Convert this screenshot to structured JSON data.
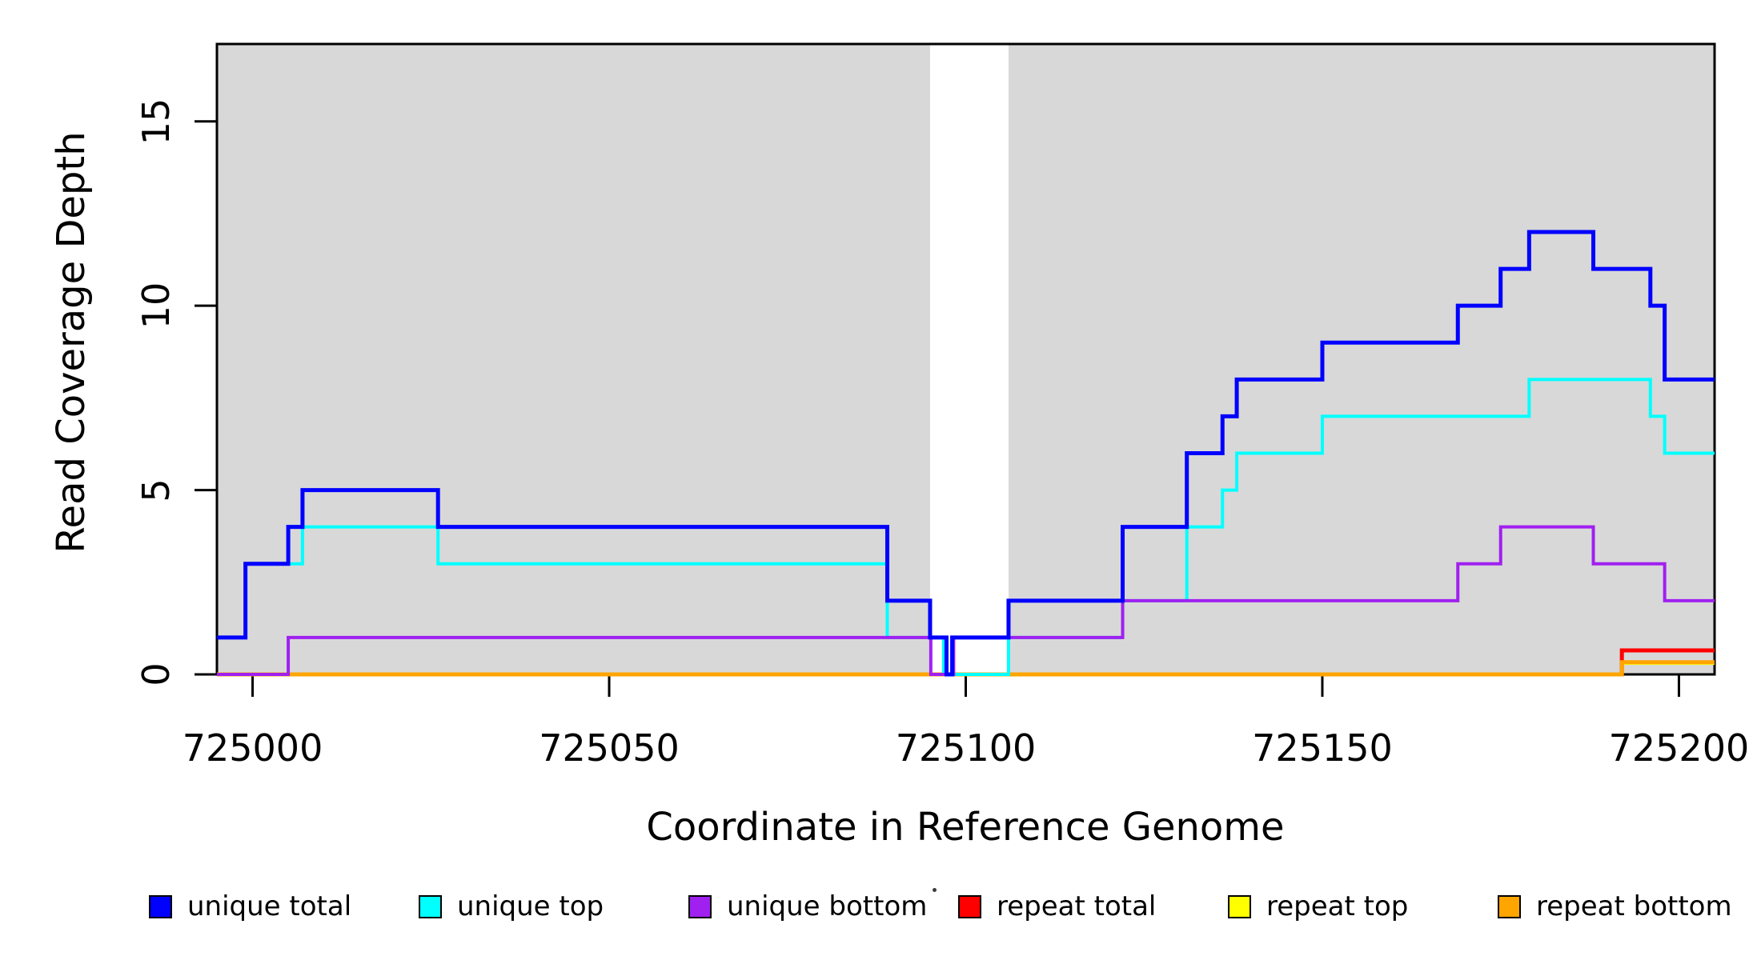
{
  "chart_data": {
    "type": "line",
    "subtype": "step-coverage",
    "title": "",
    "xlabel": "Coordinate in Reference Genome",
    "ylabel": "Read Coverage Depth",
    "xlim": [
      724995,
      725205
    ],
    "ylim": [
      0,
      17.1
    ],
    "x_ticks": [
      725000,
      725050,
      725100,
      725150,
      725200
    ],
    "y_ticks": [
      0,
      5,
      10,
      15
    ],
    "grid": false,
    "panel_shading": {
      "color": "#D8D8D8",
      "regions": [
        {
          "x0": 724995,
          "x1": 725095
        },
        {
          "x0": 725106,
          "x1": 725205
        }
      ],
      "note": "white vertical band (unshaded gap) between 725095 and 725106"
    },
    "frame_color": "#000000",
    "series": [
      {
        "name": "unique total",
        "color": "#0000FF",
        "line_width": 5,
        "steps": [
          [
            724995,
            1
          ],
          [
            724999,
            3
          ],
          [
            725005,
            4
          ],
          [
            725007,
            5
          ],
          [
            725026,
            4
          ],
          [
            725089,
            2
          ],
          [
            725095,
            1
          ],
          [
            725097.3,
            0
          ],
          [
            725098.1,
            1
          ],
          [
            725106,
            2
          ],
          [
            725122,
            4
          ],
          [
            725131,
            6
          ],
          [
            725136,
            7
          ],
          [
            725138,
            8
          ],
          [
            725150,
            9
          ],
          [
            725169,
            10
          ],
          [
            725175,
            11
          ],
          [
            725179,
            12
          ],
          [
            725188,
            11
          ],
          [
            725196,
            10
          ],
          [
            725198,
            8
          ],
          [
            725205,
            8
          ]
        ]
      },
      {
        "name": "unique top",
        "color": "#00FFFF",
        "line_width": 4,
        "steps": [
          [
            724995,
            1
          ],
          [
            724999,
            3
          ],
          [
            725007,
            4
          ],
          [
            725026,
            3
          ],
          [
            725089,
            1
          ],
          [
            725096.9,
            0
          ],
          [
            725106,
            1
          ],
          [
            725122,
            2
          ],
          [
            725131,
            4
          ],
          [
            725136,
            5
          ],
          [
            725138,
            6
          ],
          [
            725150,
            7
          ],
          [
            725179,
            8
          ],
          [
            725196,
            7
          ],
          [
            725198,
            6
          ],
          [
            725205,
            6
          ]
        ]
      },
      {
        "name": "unique bottom",
        "color": "#A020F0",
        "line_width": 4,
        "steps": [
          [
            724995,
            0
          ],
          [
            725005,
            1
          ],
          [
            725095.1,
            0
          ],
          [
            725098.3,
            1
          ],
          [
            725122,
            2
          ],
          [
            725169,
            3
          ],
          [
            725175,
            4
          ],
          [
            725188,
            3
          ],
          [
            725198,
            2
          ],
          [
            725205,
            2
          ]
        ]
      },
      {
        "name": "repeat total",
        "color": "#FF0000",
        "line_width": 5,
        "steps": [
          [
            724995,
            0
          ],
          [
            725192,
            0.65
          ],
          [
            725205,
            0.65
          ]
        ]
      },
      {
        "name": "repeat top",
        "color": "#FFFF00",
        "line_width": 4,
        "steps": [
          [
            724995,
            0
          ],
          [
            725192,
            0.3
          ],
          [
            725205,
            0.3
          ]
        ]
      },
      {
        "name": "repeat bottom",
        "color": "#FFA500",
        "line_width": 5,
        "steps": [
          [
            724995,
            0
          ],
          [
            725192,
            0.33
          ],
          [
            725205,
            0.33
          ]
        ]
      }
    ],
    "draw_order": [
      "repeat top",
      "repeat total",
      "repeat bottom",
      "unique top",
      "unique bottom",
      "unique total"
    ],
    "legend": {
      "position": "bottom",
      "entries": [
        {
          "label": "unique total",
          "color": "#0000FF"
        },
        {
          "label": "unique top",
          "color": "#00FFFF"
        },
        {
          "label": "unique bottom",
          "color": "#A020F0"
        },
        {
          "label": "repeat total",
          "color": "#FF0000"
        },
        {
          "label": "repeat top",
          "color": "#FFFF00"
        },
        {
          "label": "repeat bottom",
          "color": "#FFA500"
        }
      ]
    }
  }
}
